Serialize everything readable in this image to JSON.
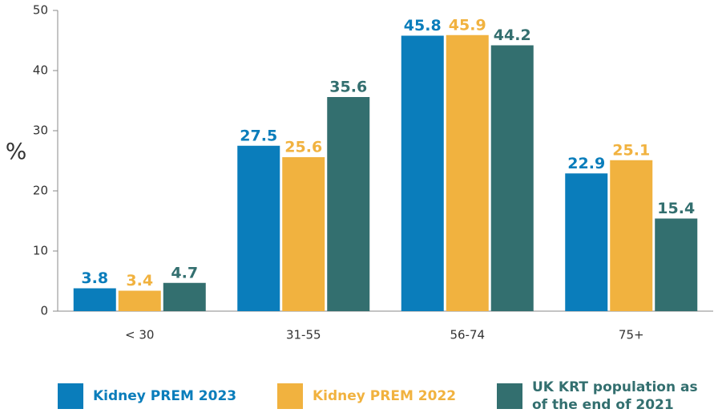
{
  "chart_data": {
    "type": "bar",
    "y_label": "%",
    "categories": [
      "< 30",
      "31-55",
      "56-74",
      "75+"
    ],
    "series": [
      {
        "name": "Kidney PREM 2023",
        "color": "#0a7dbb",
        "values": [
          3.8,
          27.5,
          45.8,
          22.9
        ]
      },
      {
        "name": "Kidney PREM 2022",
        "color": "#f1b23f",
        "values": [
          3.4,
          25.6,
          45.9,
          25.1
        ]
      },
      {
        "name": "UK KRT population as of the end of 2021",
        "color": "#336f6f",
        "values": [
          4.7,
          35.6,
          44.2,
          15.4
        ]
      }
    ],
    "ylim": [
      0,
      50
    ],
    "yticks": [
      0,
      10,
      20,
      30,
      40,
      50
    ],
    "grid": false
  }
}
